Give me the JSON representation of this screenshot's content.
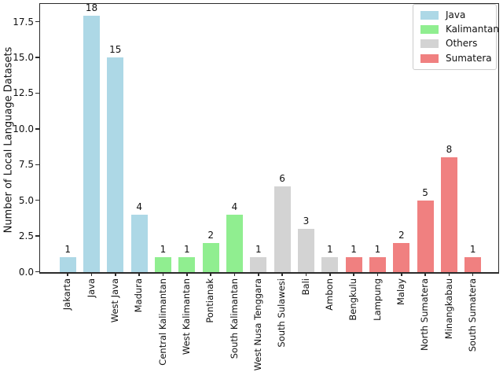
{
  "chart_data": {
    "type": "bar",
    "title": "",
    "xlabel": "",
    "ylabel": "Number of Local Language Datasets",
    "ylim": [
      0,
      18.8
    ],
    "yticks": [
      "0.0",
      "2.5",
      "5.0",
      "7.5",
      "10.0",
      "12.5",
      "15.0",
      "17.5"
    ],
    "grid": false,
    "legend_position": "upper right",
    "legend": [
      {
        "label": "Java",
        "color": "#ADD8E6"
      },
      {
        "label": "Kalimantan",
        "color": "#90EE90"
      },
      {
        "label": "Others",
        "color": "#D3D3D3"
      },
      {
        "label": "Sumatera",
        "color": "#F08080"
      }
    ],
    "bars": [
      {
        "category": "Jakarta",
        "value": 1,
        "group": "Java"
      },
      {
        "category": "Java",
        "value": 18,
        "group": "Java"
      },
      {
        "category": "West Java",
        "value": 15,
        "group": "Java"
      },
      {
        "category": "Madura",
        "value": 4,
        "group": "Java"
      },
      {
        "category": "Central Kalimantan",
        "value": 1,
        "group": "Kalimantan"
      },
      {
        "category": "West Kalimantan",
        "value": 1,
        "group": "Kalimantan"
      },
      {
        "category": "Pontianak",
        "value": 2,
        "group": "Kalimantan"
      },
      {
        "category": "South Kalimantan",
        "value": 4,
        "group": "Kalimantan"
      },
      {
        "category": "West Nusa Tenggara",
        "value": 1,
        "group": "Others"
      },
      {
        "category": "South Sulawesi",
        "value": 6,
        "group": "Others"
      },
      {
        "category": "Bali",
        "value": 3,
        "group": "Others"
      },
      {
        "category": "Ambon",
        "value": 1,
        "group": "Others"
      },
      {
        "category": "Bengkulu",
        "value": 1,
        "group": "Sumatera"
      },
      {
        "category": "Lampung",
        "value": 1,
        "group": "Sumatera"
      },
      {
        "category": "Malay",
        "value": 2,
        "group": "Sumatera"
      },
      {
        "category": "North Sumatera",
        "value": 5,
        "group": "Sumatera"
      },
      {
        "category": "Minangkabau",
        "value": 8,
        "group": "Sumatera"
      },
      {
        "category": "South Sumatera",
        "value": 1,
        "group": "Sumatera"
      }
    ],
    "colors": {
      "axis": "#2b2b2b",
      "text": "#111111",
      "background": "#ffffff",
      "legend_border": "#cccccc"
    }
  }
}
